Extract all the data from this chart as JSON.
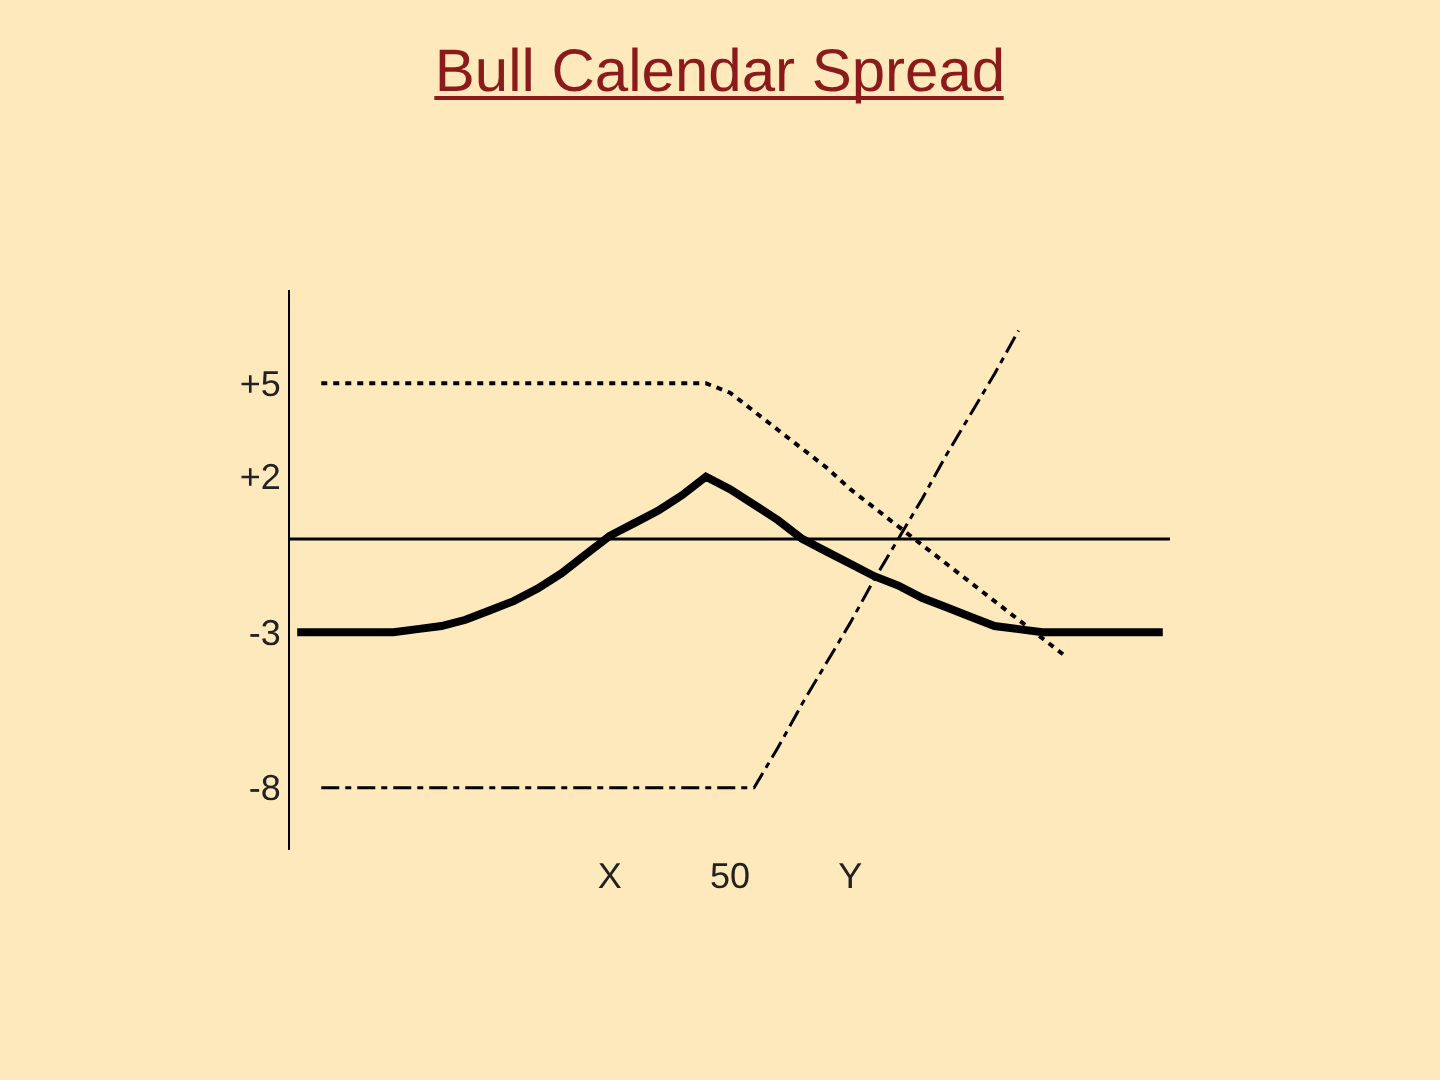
{
  "chart_data": {
    "type": "line",
    "title": "Bull Calendar Spread",
    "categories": [
      null,
      null,
      null,
      null,
      null,
      null,
      null,
      null,
      null,
      null,
      null,
      null,
      null,
      "X",
      null,
      null,
      null,
      null,
      "50",
      null,
      null,
      null,
      null,
      "Y",
      null,
      null,
      null,
      null,
      null,
      null,
      null,
      null,
      null,
      null,
      null,
      null,
      null
    ],
    "ylim": [
      -10,
      8
    ],
    "yticks": [
      {
        "value": 5,
        "label": "+5"
      },
      {
        "value": 2,
        "label": "+2"
      },
      {
        "value": -3,
        "label": "-3"
      },
      {
        "value": -8,
        "label": "-8"
      }
    ],
    "series": [
      {
        "color": "#000000",
        "line_style": "dotted",
        "values": [
          null,
          5,
          5,
          5,
          5,
          5,
          5,
          5,
          5,
          5,
          5,
          5,
          5,
          5,
          5,
          5,
          5,
          5,
          4.7,
          4.1,
          3.5,
          2.9,
          2.3,
          1.6,
          1.0,
          0.4,
          -0.2,
          -0.8,
          -1.4,
          -2.0,
          -2.6,
          -3.2,
          -3.8,
          null,
          null,
          null,
          null
        ]
      },
      {
        "color": "#000000",
        "line_style": "dashdot",
        "values": [
          null,
          -8,
          -8,
          -8,
          -8,
          -8,
          -8,
          -8,
          -8,
          -8,
          -8,
          -8,
          -8,
          -8,
          -8,
          -8,
          -8,
          -8,
          -8,
          -8,
          -6.7,
          -5.3,
          -4,
          -2.7,
          -1.3,
          0,
          1.3,
          2.7,
          4,
          5.3,
          6.7,
          null,
          null,
          null,
          null,
          null,
          null
        ]
      },
      {
        "color": "#000000",
        "line_style": "solid",
        "values": [
          -3,
          -3,
          -3,
          -3,
          -3,
          -2.9,
          -2.8,
          -2.6,
          -2.3,
          -2,
          -1.6,
          -1.1,
          -0.5,
          0.1,
          0.5,
          0.9,
          1.4,
          2,
          1.6,
          1.1,
          0.6,
          0,
          -0.4,
          -0.8,
          -1.2,
          -1.5,
          -1.9,
          -2.2,
          -2.5,
          -2.8,
          -2.9,
          -3,
          -3,
          -3,
          -3,
          -3,
          -3
        ]
      }
    ],
    "ref_lines": [
      {
        "axis": "y",
        "value": 0,
        "color": "#000000",
        "line_style": "solid"
      }
    ],
    "grid": false,
    "marker": "none"
  }
}
